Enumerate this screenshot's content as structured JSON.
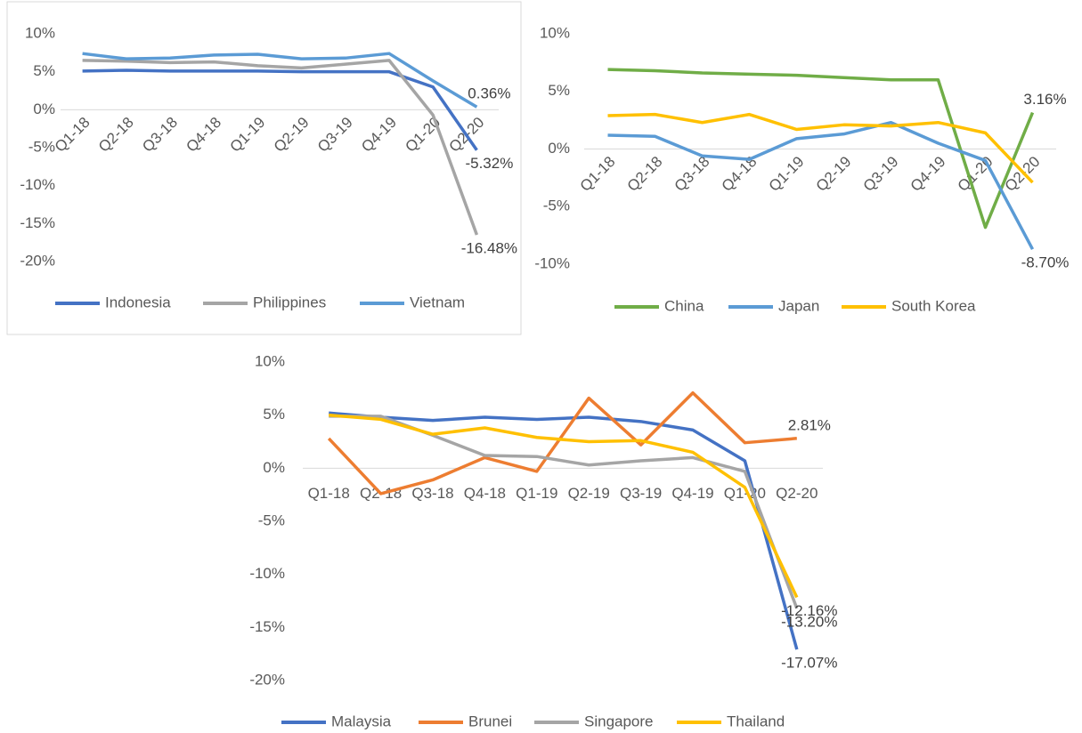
{
  "chart_data": [
    {
      "type": "line",
      "categories": [
        "Q1-18",
        "Q2-18",
        "Q3-18",
        "Q4-18",
        "Q1-19",
        "Q2-19",
        "Q3-19",
        "Q4-19",
        "Q1-20",
        "Q2-20"
      ],
      "ylim": [
        -20,
        10
      ],
      "yticks": [
        {
          "value": -20,
          "label": "-20%"
        },
        {
          "value": -15,
          "label": "-15%"
        },
        {
          "value": -10,
          "label": "-10%"
        },
        {
          "value": -5,
          "label": "-5%"
        },
        {
          "value": 0,
          "label": "0%"
        },
        {
          "value": 5,
          "label": "5%"
        },
        {
          "value": 10,
          "label": "10%"
        }
      ],
      "legend": "bottom",
      "series": [
        {
          "name": "Indonesia",
          "color": "#4472c4",
          "values": [
            5.1,
            5.2,
            5.1,
            5.1,
            5.1,
            5.0,
            5.0,
            5.0,
            3.0,
            -5.32
          ],
          "value_labels": [
            null,
            null,
            null,
            null,
            null,
            null,
            null,
            null,
            null,
            "-5.32%"
          ]
        },
        {
          "name": "Philippines",
          "color": "#a5a5a5",
          "values": [
            6.5,
            6.4,
            6.2,
            6.3,
            5.8,
            5.5,
            6.0,
            6.5,
            -0.7,
            -16.48
          ],
          "value_labels": [
            null,
            null,
            null,
            null,
            null,
            null,
            null,
            null,
            null,
            "-16.48%"
          ]
        },
        {
          "name": "Vietnam",
          "color": "#5b9bd5",
          "values": [
            7.4,
            6.7,
            6.8,
            7.2,
            7.3,
            6.7,
            6.8,
            7.4,
            3.8,
            0.36
          ],
          "value_labels": [
            null,
            null,
            null,
            null,
            null,
            null,
            null,
            null,
            null,
            "0.36%"
          ]
        }
      ]
    },
    {
      "type": "line",
      "categories": [
        "Q1-18",
        "Q2-18",
        "Q3-18",
        "Q4-18",
        "Q1-19",
        "Q2-19",
        "Q3-19",
        "Q4-19",
        "Q1-20",
        "Q2-20"
      ],
      "ylim": [
        -10,
        10
      ],
      "yticks": [
        {
          "value": -10,
          "label": "-10%"
        },
        {
          "value": -5,
          "label": "-5%"
        },
        {
          "value": 0,
          "label": "0%"
        },
        {
          "value": 5,
          "label": "5%"
        },
        {
          "value": 10,
          "label": "10%"
        }
      ],
      "legend": "bottom",
      "series": [
        {
          "name": "China",
          "color": "#70ad47",
          "values": [
            6.9,
            6.8,
            6.6,
            6.5,
            6.4,
            6.2,
            6.0,
            6.0,
            -6.8,
            3.16
          ],
          "value_labels": [
            null,
            null,
            null,
            null,
            null,
            null,
            null,
            null,
            null,
            "3.16%"
          ]
        },
        {
          "name": "Japan",
          "color": "#5b9bd5",
          "values": [
            1.2,
            1.1,
            -0.6,
            -0.9,
            0.9,
            1.3,
            2.3,
            0.5,
            -1.0,
            -8.7
          ],
          "value_labels": [
            null,
            null,
            null,
            null,
            null,
            null,
            null,
            null,
            null,
            "-8.70%"
          ]
        },
        {
          "name": "South Korea",
          "color": "#ffc000",
          "values": [
            2.9,
            3.0,
            2.3,
            3.0,
            1.7,
            2.1,
            2.0,
            2.3,
            1.4,
            -2.9
          ]
        }
      ]
    },
    {
      "type": "line",
      "categories": [
        "Q1-18",
        "Q2-18",
        "Q3-18",
        "Q4-18",
        "Q1-19",
        "Q2-19",
        "Q3-19",
        "Q4-19",
        "Q1-20",
        "Q2-20"
      ],
      "ylim": [
        -20,
        10
      ],
      "yticks": [
        {
          "value": -20,
          "label": "-20%"
        },
        {
          "value": -15,
          "label": "-15%"
        },
        {
          "value": -10,
          "label": "-10%"
        },
        {
          "value": -5,
          "label": "-5%"
        },
        {
          "value": 0,
          "label": "0%"
        },
        {
          "value": 5,
          "label": "5%"
        },
        {
          "value": 10,
          "label": "10%"
        }
      ],
      "legend": "bottom",
      "series": [
        {
          "name": "Malaysia",
          "color": "#4472c4",
          "values": [
            5.2,
            4.8,
            4.5,
            4.8,
            4.6,
            4.8,
            4.4,
            3.6,
            0.7,
            -17.07
          ],
          "value_labels": [
            null,
            null,
            null,
            null,
            null,
            null,
            null,
            null,
            null,
            "-17.07%"
          ]
        },
        {
          "name": "Brunei",
          "color": "#ed7d31",
          "values": [
            2.8,
            -2.4,
            -1.1,
            1.0,
            -0.3,
            6.6,
            2.2,
            7.1,
            2.4,
            2.81
          ],
          "value_labels": [
            null,
            null,
            null,
            null,
            null,
            null,
            null,
            null,
            null,
            "2.81%"
          ]
        },
        {
          "name": "Singapore",
          "color": "#a5a5a5",
          "values": [
            4.9,
            4.9,
            3.1,
            1.2,
            1.1,
            0.3,
            0.7,
            1.0,
            -0.3,
            -13.2
          ],
          "value_labels": [
            null,
            null,
            null,
            null,
            null,
            null,
            null,
            null,
            null,
            "-13.20%"
          ]
        },
        {
          "name": "Thailand",
          "color": "#ffc000",
          "values": [
            5.0,
            4.6,
            3.2,
            3.8,
            2.9,
            2.5,
            2.6,
            1.5,
            -1.8,
            -12.16
          ],
          "value_labels": [
            null,
            null,
            null,
            null,
            null,
            null,
            null,
            null,
            null,
            "-12.16%"
          ]
        }
      ]
    }
  ]
}
